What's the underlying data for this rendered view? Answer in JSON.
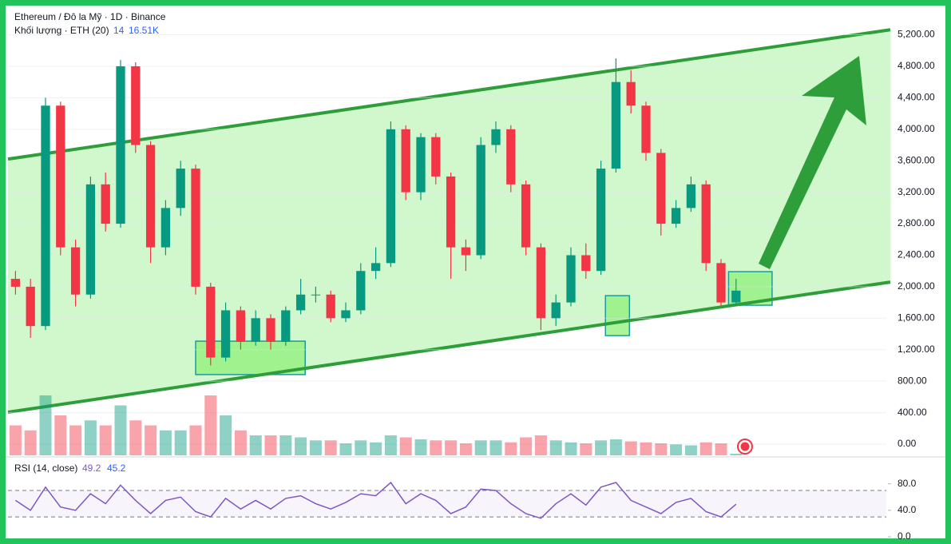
{
  "chart_data": {
    "type": "candlestick",
    "title": "Ethereum / Đô la Mỹ · 1D · Binance",
    "volume_label": "Khối lượng · ETH (20)",
    "volume_period_value": "14",
    "volume_last": "16.51K",
    "rsi_label": "RSI (14, close)",
    "rsi_value": "49.2",
    "rsi_ma_value": "45.2",
    "open": [
      2100,
      2000,
      1500,
      4300,
      2500,
      1900,
      3300,
      2800,
      4800,
      3800,
      2500,
      3000,
      3500,
      2000,
      1100,
      1700,
      1300,
      1600,
      1300,
      1700,
      1900,
      1900,
      1600,
      1700,
      2200,
      2300,
      4000,
      3200,
      3900,
      3400,
      2500,
      2400,
      3800,
      4000,
      3300,
      2500,
      1600,
      1800,
      2400,
      2200,
      3500,
      4600,
      4300,
      3700,
      2800,
      3000,
      3300,
      2300,
      1800
    ],
    "high": [
      2200,
      2100,
      4400,
      4350,
      2600,
      3400,
      3450,
      4880,
      4850,
      3850,
      3100,
      3600,
      3550,
      2050,
      1800,
      1750,
      1700,
      1650,
      1750,
      2100,
      2000,
      1950,
      1800,
      2300,
      2500,
      4100,
      4050,
      3950,
      3950,
      3450,
      2600,
      3900,
      4100,
      4050,
      3350,
      2550,
      1900,
      2500,
      2550,
      3600,
      4900,
      4750,
      4350,
      3750,
      3100,
      3400,
      3350,
      2350,
      2100
    ],
    "low": [
      1900,
      1350,
      1450,
      2400,
      1750,
      1850,
      2700,
      2750,
      3700,
      2300,
      2400,
      2900,
      1900,
      1000,
      1050,
      1200,
      1250,
      1200,
      1250,
      1650,
      1800,
      1550,
      1550,
      1650,
      2100,
      2250,
      3100,
      3100,
      3300,
      2100,
      2200,
      2350,
      3700,
      3200,
      2400,
      1450,
      1500,
      1750,
      2100,
      2150,
      3450,
      4200,
      3600,
      2650,
      2750,
      2950,
      2200,
      1750,
      1750
    ],
    "close": [
      2000,
      1500,
      4300,
      2500,
      1900,
      3300,
      2800,
      4800,
      3800,
      2500,
      3000,
      3500,
      2000,
      1100,
      1700,
      1300,
      1600,
      1300,
      1700,
      1900,
      1900,
      1600,
      1700,
      2200,
      2300,
      4000,
      3200,
      3900,
      3400,
      2500,
      2400,
      3800,
      4000,
      3300,
      2500,
      1600,
      1800,
      2400,
      2200,
      3500,
      4600,
      4300,
      3700,
      2800,
      3000,
      3300,
      2300,
      1800,
      1950
    ],
    "volume": [
      300,
      250,
      600,
      400,
      300,
      350,
      300,
      500,
      350,
      300,
      250,
      250,
      300,
      600,
      400,
      250,
      200,
      200,
      200,
      180,
      150,
      150,
      120,
      150,
      130,
      200,
      180,
      160,
      150,
      150,
      120,
      150,
      150,
      130,
      180,
      200,
      150,
      130,
      120,
      150,
      160,
      140,
      130,
      120,
      110,
      100,
      130,
      120,
      16.51
    ],
    "rsi": [
      55,
      40,
      75,
      45,
      40,
      65,
      50,
      78,
      55,
      35,
      55,
      60,
      38,
      30,
      58,
      42,
      55,
      42,
      58,
      62,
      50,
      42,
      52,
      65,
      62,
      82,
      50,
      65,
      55,
      35,
      45,
      72,
      70,
      50,
      35,
      28,
      50,
      65,
      48,
      75,
      82,
      55,
      45,
      35,
      52,
      58,
      38,
      30,
      49.2
    ],
    "up_color": "#089981",
    "down_color": "#f23645",
    "ylim": [
      0,
      5642
    ],
    "yticks": [
      {
        "value": 0,
        "label": "0.00"
      },
      {
        "value": 400,
        "label": "400.00"
      },
      {
        "value": 800,
        "label": "800.00"
      },
      {
        "value": 1200,
        "label": "1,200.00"
      },
      {
        "value": 1600,
        "label": "1,600.00"
      },
      {
        "value": 2000,
        "label": "2,000.00"
      },
      {
        "value": 2400,
        "label": "2,400.00"
      },
      {
        "value": 2800,
        "label": "2,800.00"
      },
      {
        "value": 3200,
        "label": "3,200.00"
      },
      {
        "value": 3600,
        "label": "3,600.00"
      },
      {
        "value": 4000,
        "label": "4,000.00"
      },
      {
        "value": 4400,
        "label": "4,400.00"
      },
      {
        "value": 4800,
        "label": "4,800.00"
      },
      {
        "value": 5200,
        "label": "5,200.00"
      }
    ],
    "rsi_ylim": [
      0,
      111
    ],
    "rsi_yticks": [
      {
        "value": 0,
        "label": "0.0"
      },
      {
        "value": 40,
        "label": "40.0"
      },
      {
        "value": 80,
        "label": "80.0"
      }
    ],
    "rsi_levels": [
      30,
      70
    ],
    "channel": {
      "upper": [
        3621,
        5264
      ],
      "lower": [
        406,
        2059
      ],
      "color": "#2e9e3a"
    },
    "zones": [
      {
        "from": 12.5,
        "to": 19.8,
        "low": 884,
        "high": 1308
      },
      {
        "from": 39.8,
        "to": 41.4,
        "low": 1379,
        "high": 1886
      },
      {
        "from": 48.0,
        "to": 50.9,
        "low": 1765,
        "high": 2191
      }
    ]
  }
}
